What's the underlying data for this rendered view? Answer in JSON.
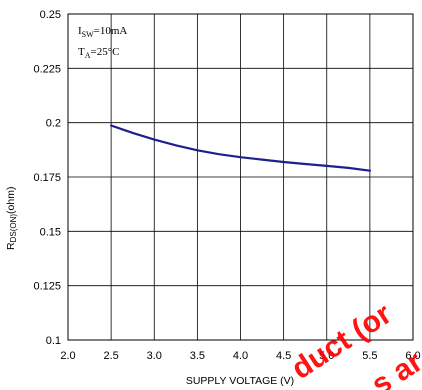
{
  "chart_data": {
    "type": "line",
    "title": "",
    "xlabel": "SUPPLY VOLTAGE (V)",
    "ylabel_main": "R",
    "ylabel_sub": "DS(ON)",
    "ylabel_unit": "(ohm)",
    "xlim": [
      2.0,
      6.0
    ],
    "ylim": [
      0.1,
      0.25
    ],
    "x_ticks": [
      "2.0",
      "2.5",
      "3.0",
      "3.5",
      "4.0",
      "4.5",
      "5.0",
      "5.5",
      "6.0"
    ],
    "x_tick_values": [
      2.0,
      2.5,
      3.0,
      3.5,
      4.0,
      4.5,
      5.0,
      5.5,
      6.0
    ],
    "y_ticks": [
      "0.1",
      "0.125",
      "0.15",
      "0.175",
      "0.2",
      "0.225",
      "0.25"
    ],
    "y_tick_values": [
      0.1,
      0.125,
      0.15,
      0.175,
      0.2,
      0.225,
      0.25
    ],
    "grid": true,
    "series": [
      {
        "x": [
          2.5,
          2.75,
          3.0,
          3.25,
          3.5,
          3.75,
          4.0,
          4.25,
          4.5,
          4.75,
          5.0,
          5.25,
          5.5
        ],
        "y": [
          0.1987,
          0.1953,
          0.1922,
          0.1896,
          0.1873,
          0.1855,
          0.1841,
          0.183,
          0.1819,
          0.181,
          0.1801,
          0.1792,
          0.1779
        ],
        "color": "#1f1f8f"
      }
    ],
    "annotations": {
      "line1_main": "I",
      "line1_sub": "SW",
      "line1_rest": "=10mA",
      "line2_main": "T",
      "line2_sub": "A",
      "line2_rest": "=25°C"
    }
  },
  "watermark": {
    "line1": "duct (or",
    "line2": "s ar",
    "color": "#ff0000"
  }
}
